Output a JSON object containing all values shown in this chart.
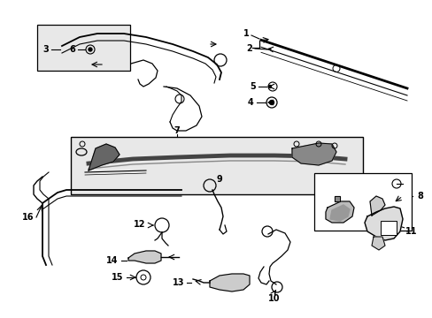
{
  "bg_color": "#ffffff",
  "line_color": "#000000",
  "fig_width": 4.89,
  "fig_height": 3.6,
  "dpi": 100,
  "fs": 7
}
